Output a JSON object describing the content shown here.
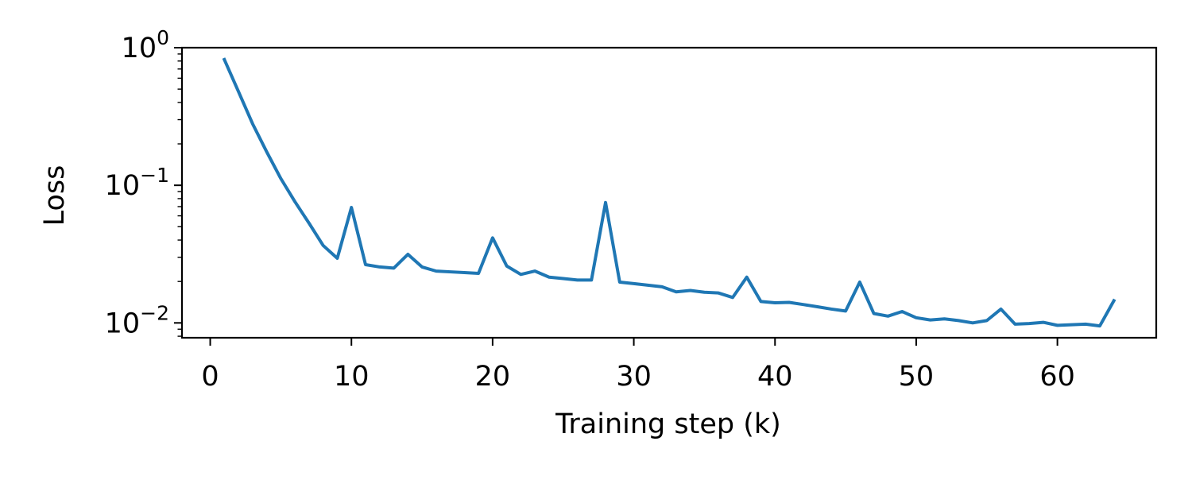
{
  "chart_data": {
    "type": "line",
    "title": "",
    "xlabel": "Training step (k)",
    "ylabel": "Loss",
    "y_scale": "log",
    "xlim": [
      -2,
      67
    ],
    "ylim": [
      0.0078,
      1.0
    ],
    "grid": false,
    "legend": "none",
    "x_ticks": [
      0,
      10,
      20,
      30,
      40,
      50,
      60
    ],
    "x_tick_labels": [
      "0",
      "10",
      "20",
      "30",
      "40",
      "50",
      "60"
    ],
    "y_ticks": [
      {
        "value": 1,
        "base": "10",
        "exponent": "0"
      },
      {
        "value": 0.1,
        "base": "10",
        "exponent": "−1"
      },
      {
        "value": 0.01,
        "base": "10",
        "exponent": "−2"
      }
    ],
    "colors": {
      "line": "#1f77b4",
      "axes": "#000000",
      "background": "#ffffff"
    },
    "series": [
      {
        "x": [
          1,
          2,
          3,
          4,
          5,
          6,
          7,
          8,
          9,
          10,
          11,
          12,
          13,
          14,
          15,
          16,
          17,
          18,
          19,
          20,
          21,
          22,
          23,
          24,
          25,
          26,
          27,
          28,
          29,
          30,
          31,
          32,
          33,
          34,
          35,
          36,
          37,
          38,
          39,
          40,
          41,
          42,
          43,
          44,
          45,
          46,
          47,
          48,
          49,
          50,
          51,
          52,
          53,
          54,
          55,
          56,
          57,
          58,
          59,
          60,
          61,
          62,
          63,
          64
        ],
        "y": [
          0.82,
          0.48,
          0.28,
          0.175,
          0.112,
          0.076,
          0.053,
          0.0365,
          0.0295,
          0.069,
          0.0265,
          0.0255,
          0.025,
          0.0315,
          0.0255,
          0.0238,
          0.0235,
          0.0232,
          0.0229,
          0.0415,
          0.0259,
          0.0225,
          0.0238,
          0.0215,
          0.021,
          0.0205,
          0.0205,
          0.075,
          0.0198,
          0.0193,
          0.0188,
          0.0183,
          0.0168,
          0.0172,
          0.0167,
          0.0165,
          0.0153,
          0.0215,
          0.0143,
          0.014,
          0.0141,
          0.0136,
          0.0131,
          0.0126,
          0.0122,
          0.0198,
          0.0117,
          0.0112,
          0.0121,
          0.0109,
          0.0105,
          0.0107,
          0.0104,
          0.01,
          0.0104,
          0.0126,
          0.0098,
          0.0099,
          0.0101,
          0.0096,
          0.0097,
          0.0098,
          0.0095,
          0.0145
        ]
      }
    ]
  }
}
